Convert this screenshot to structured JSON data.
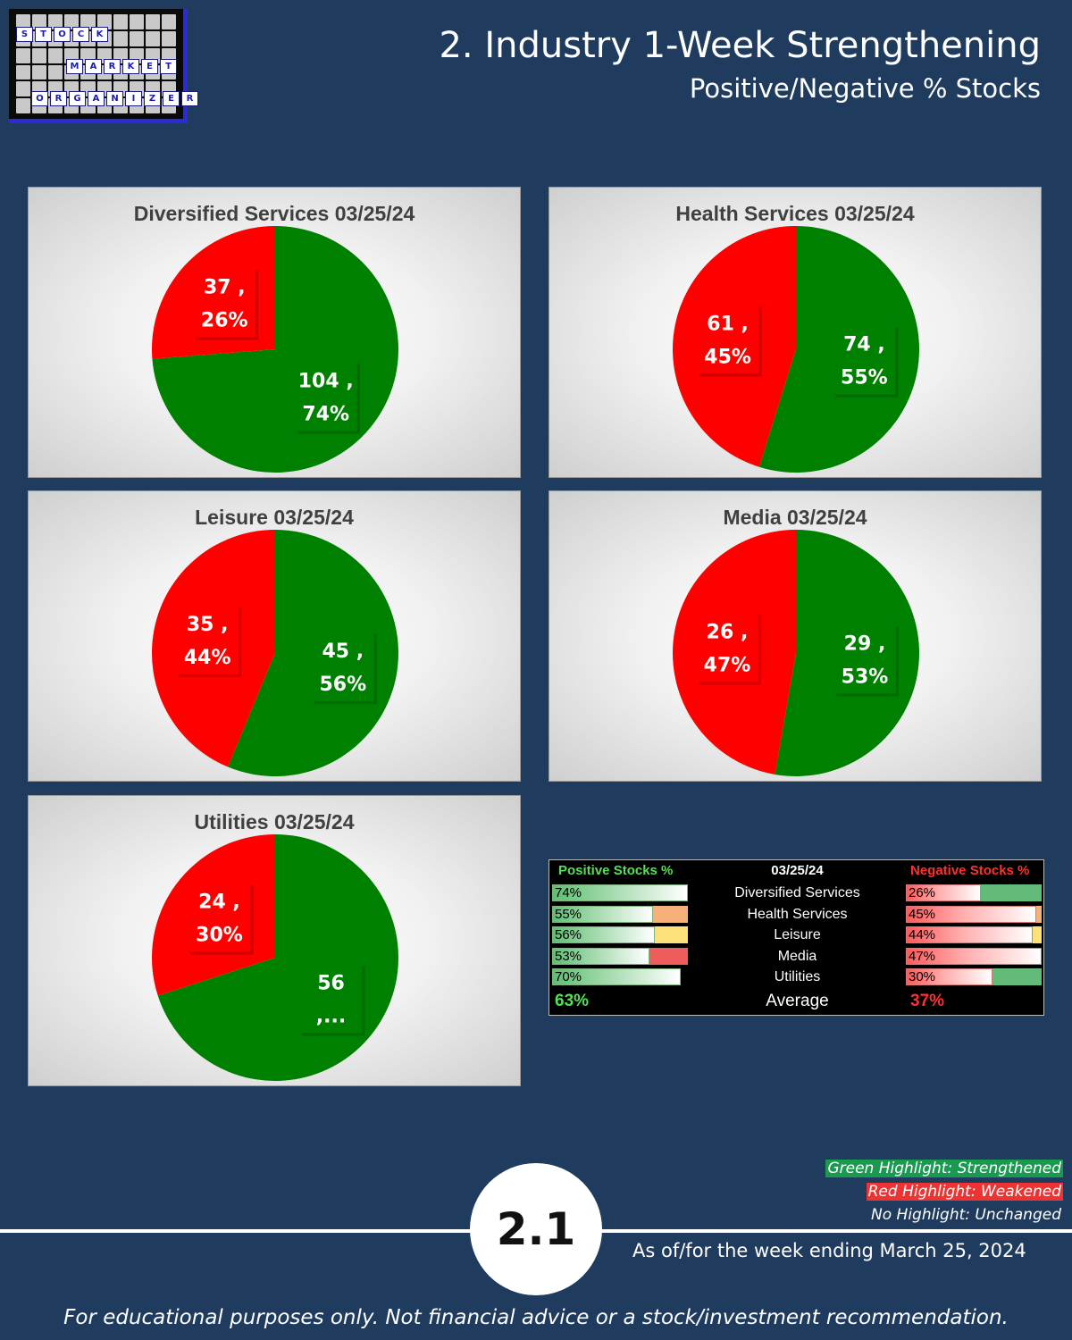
{
  "logo": {
    "words": [
      {
        "letters": [
          "S",
          "T",
          "O",
          "C",
          "K"
        ]
      },
      {
        "letters": [
          "M",
          "A",
          "R",
          "K",
          "E",
          "T"
        ]
      },
      {
        "letters": [
          "O",
          "R",
          "G",
          "A",
          "N",
          "I",
          "Z",
          "E",
          "R"
        ]
      }
    ]
  },
  "header": {
    "title": "2. Industry 1-Week Strengthening",
    "subtitle": "Positive/Negative % Stocks"
  },
  "colors": {
    "positive": "#008000",
    "negative": "#ff0000",
    "background": "#1f3c5e",
    "strengthened_highlight": "#1a9a50",
    "weakened_highlight": "#ee3333"
  },
  "chart_data": [
    {
      "type": "pie",
      "title": "Diversified Services 03/25/24",
      "labels": [
        "Positive",
        "Negative"
      ],
      "values": [
        104,
        37
      ],
      "percents": [
        74,
        26
      ],
      "label_text": [
        [
          "104 ,",
          "74%"
        ],
        [
          "37 ,",
          "26%"
        ]
      ]
    },
    {
      "type": "pie",
      "title": "Health Services 03/25/24",
      "labels": [
        "Positive",
        "Negative"
      ],
      "values": [
        74,
        61
      ],
      "percents": [
        55,
        45
      ],
      "label_text": [
        [
          "74 ,",
          "55%"
        ],
        [
          "61 ,",
          "45%"
        ]
      ]
    },
    {
      "type": "pie",
      "title": "Leisure 03/25/24",
      "labels": [
        "Positive",
        "Negative"
      ],
      "values": [
        45,
        35
      ],
      "percents": [
        56,
        44
      ],
      "label_text": [
        [
          "45 ,",
          "56%"
        ],
        [
          "35 ,",
          "44%"
        ]
      ]
    },
    {
      "type": "pie",
      "title": "Media 03/25/24",
      "labels": [
        "Positive",
        "Negative"
      ],
      "values": [
        29,
        26
      ],
      "percents": [
        53,
        47
      ],
      "label_text": [
        [
          "29 ,",
          "53%"
        ],
        [
          "26 ,",
          "47%"
        ]
      ]
    },
    {
      "type": "pie",
      "title": "Utilities 03/25/24",
      "labels": [
        "Positive",
        "Negative"
      ],
      "values": [
        56,
        24
      ],
      "percents": [
        70,
        30
      ],
      "label_text": [
        [
          "56",
          ",..."
        ],
        [
          "24 ,",
          "30%"
        ]
      ]
    },
    {
      "type": "table",
      "title": "03/25/24",
      "columns": [
        "Positive Stocks %",
        "03/25/24",
        "Negative Stocks %"
      ],
      "rows": [
        {
          "name": "Diversified Services",
          "positive": 74,
          "negative": 26,
          "positive_text": "74%",
          "negative_text": "26%",
          "positive_highlight": "none",
          "negative_highlight": "green"
        },
        {
          "name": "Health Services",
          "positive": 55,
          "negative": 45,
          "positive_text": "55%",
          "negative_text": "45%",
          "positive_highlight": "orange",
          "negative_highlight": "orange"
        },
        {
          "name": "Leisure",
          "positive": 56,
          "negative": 44,
          "positive_text": "56%",
          "negative_text": "44%",
          "positive_highlight": "yellow",
          "negative_highlight": "yellow"
        },
        {
          "name": "Media",
          "positive": 53,
          "negative": 47,
          "positive_text": "53%",
          "negative_text": "47%",
          "positive_highlight": "red",
          "negative_highlight": "none"
        },
        {
          "name": "Utilities",
          "positive": 70,
          "negative": 30,
          "positive_text": "70%",
          "negative_text": "30%",
          "positive_highlight": "none",
          "negative_highlight": "green"
        }
      ],
      "average": {
        "label": "Average",
        "positive": "63%",
        "negative": "37%"
      }
    }
  ],
  "legend": {
    "strengthened": "Green Highlight: Strengthened",
    "weakened": "Red Highlight: Weakened",
    "unchanged": "No Highlight: Unchanged"
  },
  "footer": {
    "page_number": "2.1",
    "as_of": "As of/for the week ending March 25, 2024",
    "disclaimer": "For educational purposes only. Not financial advice or a stock/investment recommendation."
  }
}
